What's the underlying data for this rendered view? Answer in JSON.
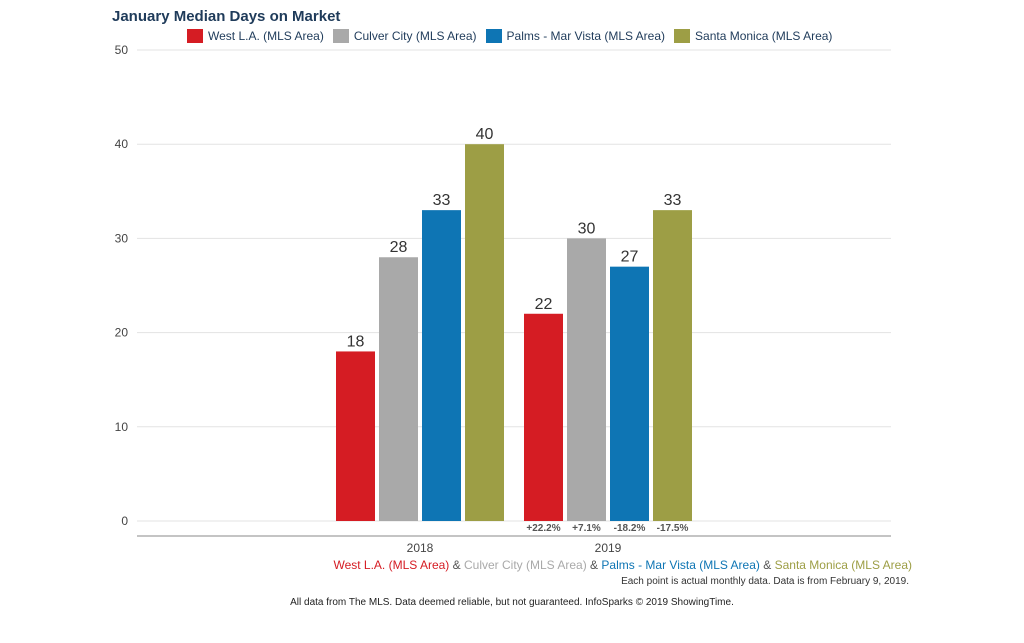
{
  "chart_data": {
    "type": "bar",
    "title": "January Median Days on Market",
    "categories": [
      "2018",
      "2019"
    ],
    "series": [
      {
        "name": "West L.A. (MLS Area)",
        "color": "#d51c23",
        "values": [
          18,
          22
        ]
      },
      {
        "name": "Culver City (MLS Area)",
        "color": "#a9a9a9",
        "values": [
          28,
          30
        ]
      },
      {
        "name": "Palms - Mar Vista (MLS Area)",
        "color": "#0e75b4",
        "values": [
          33,
          27
        ]
      },
      {
        "name": "Santa Monica (MLS Area)",
        "color": "#9d9e45",
        "values": [
          40,
          33
        ]
      }
    ],
    "change_labels": [
      "+22.2%",
      "+7.1%",
      "-18.2%",
      "-17.5%"
    ],
    "ylim": [
      0,
      50
    ],
    "yticks": [
      0,
      10,
      20,
      30,
      40,
      50
    ],
    "grid": true,
    "legend_position": "top"
  },
  "footer": {
    "series_names": [
      {
        "text": "West L.A. (MLS Area)",
        "color": "#d51c23"
      },
      {
        "text": "Culver City (MLS Area)",
        "color": "#a9a9a9"
      },
      {
        "text": "Palms - Mar Vista (MLS Area)",
        "color": "#0e75b4"
      },
      {
        "text": "Santa Monica (MLS Area)",
        "color": "#9d9e45"
      }
    ],
    "separator": "&",
    "note": "Each point is actual monthly data. Data is from February 9, 2019.",
    "disclaimer": "All data from The MLS. Data deemed reliable, but not guaranteed. InfoSparks © 2019 ShowingTime."
  }
}
